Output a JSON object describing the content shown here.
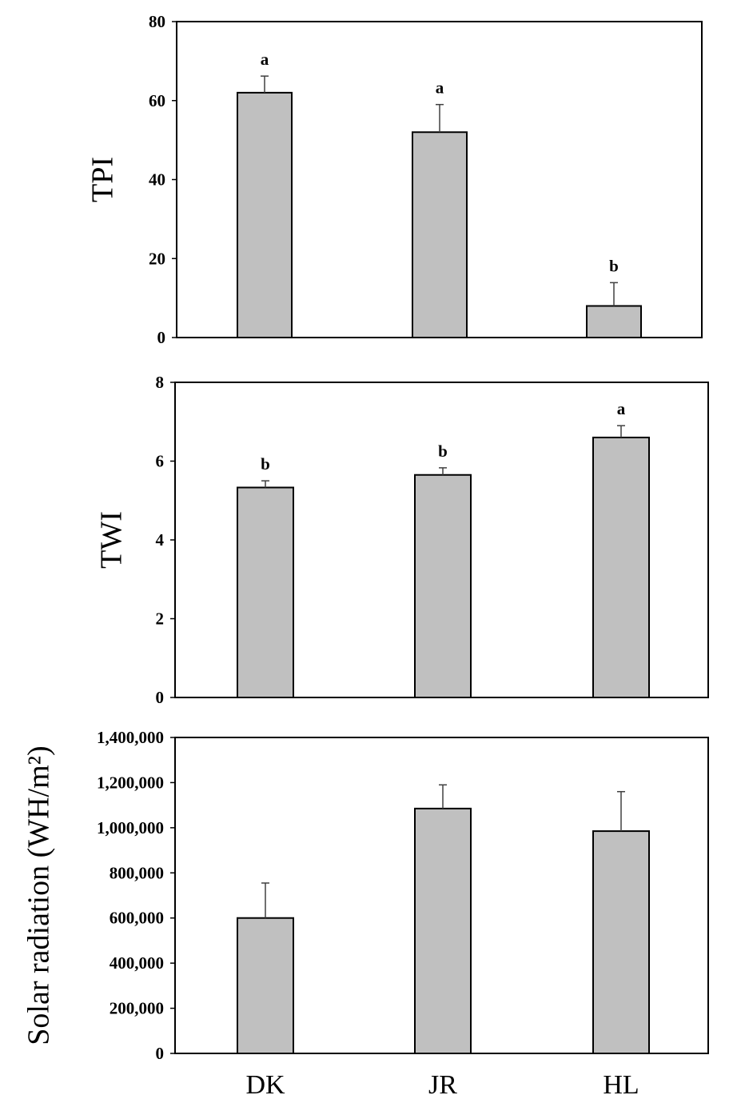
{
  "chart_data": [
    {
      "type": "bar",
      "categories": [
        "DK",
        "JR",
        "HL"
      ],
      "values": [
        62,
        52,
        8
      ],
      "errors": [
        4.2,
        7.0,
        5.9
      ],
      "significance": [
        "a",
        "a",
        "b"
      ],
      "ylabel": "TPI",
      "ylim": [
        0,
        80
      ],
      "yticks": [
        0,
        20,
        40,
        60,
        80
      ],
      "ytick_labels": [
        "0",
        "20",
        "40",
        "60",
        "80"
      ],
      "bar_color": "#c0c0c0",
      "grid": false
    },
    {
      "type": "bar",
      "categories": [
        "DK",
        "JR",
        "HL"
      ],
      "values": [
        5.33,
        5.65,
        6.6
      ],
      "errors": [
        0.17,
        0.18,
        0.3
      ],
      "significance": [
        "b",
        "b",
        "a"
      ],
      "ylabel": "TWI",
      "ylim": [
        0,
        8
      ],
      "yticks": [
        0,
        2,
        4,
        6,
        8
      ],
      "ytick_labels": [
        "0",
        "2",
        "4",
        "6",
        "8"
      ],
      "bar_color": "#c0c0c0",
      "grid": false
    },
    {
      "type": "bar",
      "categories": [
        "DK",
        "JR",
        "HL"
      ],
      "values": [
        600000,
        1085000,
        985000
      ],
      "errors": [
        155000,
        105000,
        175000
      ],
      "significance": [],
      "ylabel": "Solar radiation (WH/m²)",
      "ylim": [
        0,
        1400000
      ],
      "yticks": [
        0,
        200000,
        400000,
        600000,
        800000,
        1000000,
        1200000,
        1400000
      ],
      "ytick_labels": [
        "0",
        "200,000",
        "400,000",
        "600,000",
        "800,000",
        "1,000,000",
        "1,200,000",
        "1,400,000"
      ],
      "bar_color": "#c0c0c0",
      "grid": false
    }
  ]
}
